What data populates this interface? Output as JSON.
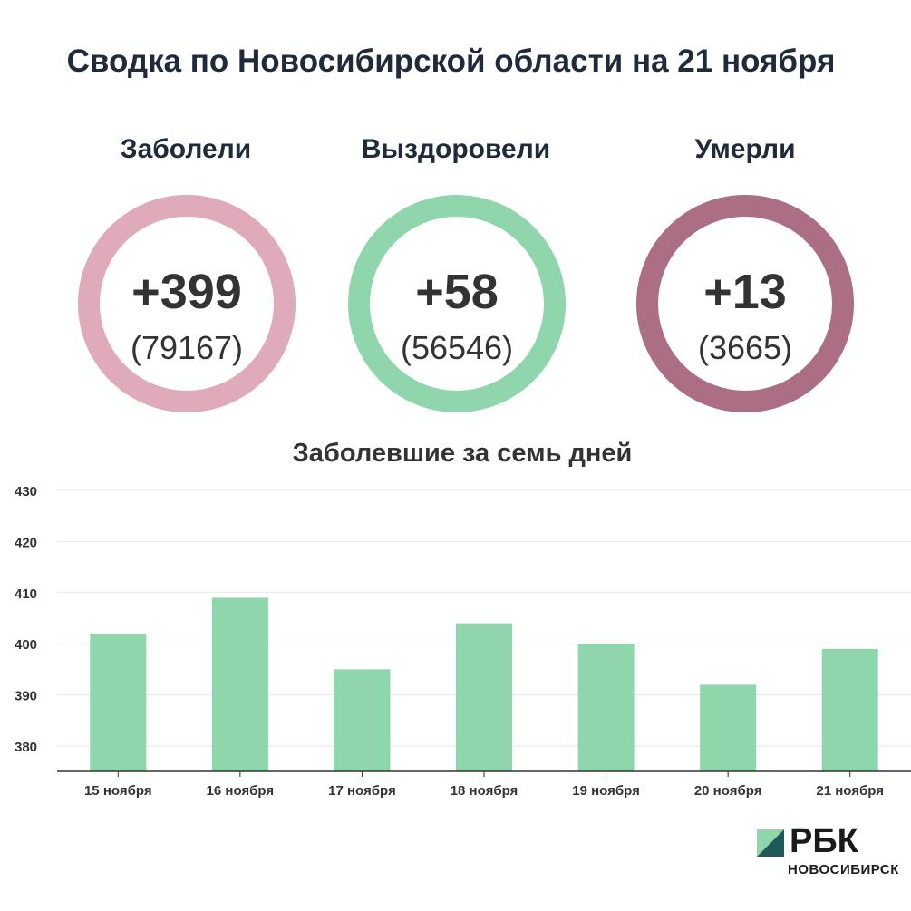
{
  "header": {
    "title": "Сводка по Новосибирской области на 21 ноября"
  },
  "stats": [
    {
      "label": "Заболели",
      "delta": "+399",
      "total": "(79167)",
      "color": "#dfaab9"
    },
    {
      "label": "Выздоровели",
      "delta": "+58",
      "total": "(56546)",
      "color": "#90d6ac"
    },
    {
      "label": "Умерли",
      "delta": "+13",
      "total": "(3665)",
      "color": "#ab6e84"
    }
  ],
  "chart_data": {
    "type": "bar",
    "title": "Заболевшие за семь дней",
    "categories": [
      "15 ноября",
      "16 ноября",
      "17 ноября",
      "18 ноября",
      "19 ноября",
      "20 ноября",
      "21 ноября"
    ],
    "values": [
      402,
      409,
      395,
      404,
      400,
      392,
      399
    ],
    "ylim": [
      375,
      430
    ],
    "yticks": [
      380,
      390,
      400,
      410,
      420,
      430
    ],
    "bar_color": "#90d6ac",
    "grid": true
  },
  "logo": {
    "name": "РБК",
    "sub": "НОВОСИБИРСК",
    "mark_light": "#90d6ac",
    "mark_dark": "#1e5a5a"
  }
}
